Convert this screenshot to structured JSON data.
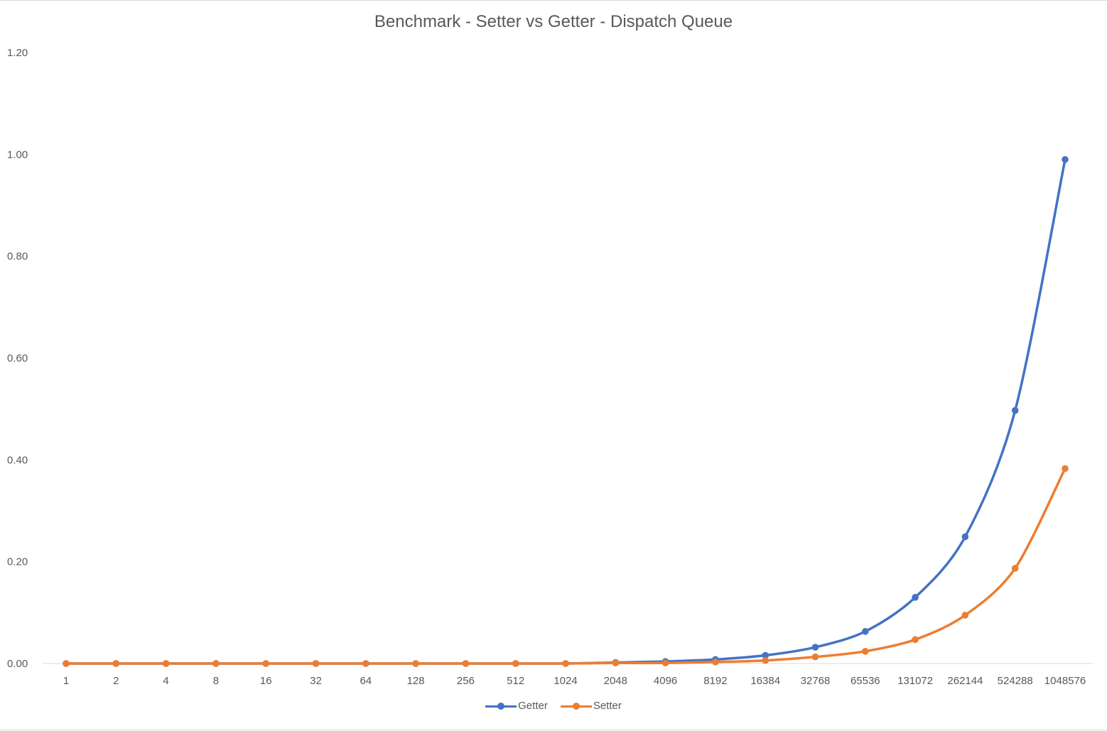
{
  "chart_data": {
    "type": "line",
    "title": "Benchmark - Setter vs Getter - Dispatch Queue",
    "xlabel": "",
    "ylabel": "",
    "categories": [
      "1",
      "2",
      "4",
      "8",
      "16",
      "32",
      "64",
      "128",
      "256",
      "512",
      "1024",
      "2048",
      "4096",
      "8192",
      "16384",
      "32768",
      "65536",
      "131072",
      "262144",
      "524288",
      "1048576"
    ],
    "y_ticks": [
      "0.00",
      "0.20",
      "0.40",
      "0.60",
      "0.80",
      "1.00",
      "1.20"
    ],
    "ylim": [
      0,
      1.2
    ],
    "grid": "horizontal-baseline-only",
    "legend_position": "bottom",
    "series": [
      {
        "name": "Getter",
        "color": "#4472c4",
        "values": [
          0.0,
          0.0,
          0.0,
          0.0,
          0.0,
          0.0,
          0.0,
          0.0,
          0.0,
          0.0,
          0.0,
          0.002,
          0.004,
          0.008,
          0.016,
          0.032,
          0.063,
          0.13,
          0.249,
          0.497,
          0.99
        ]
      },
      {
        "name": "Setter",
        "color": "#ed7d31",
        "values": [
          0.0,
          0.0,
          0.0,
          0.0,
          0.0,
          0.0,
          0.0,
          0.0,
          0.0,
          0.0,
          0.0,
          0.001,
          0.001,
          0.003,
          0.006,
          0.013,
          0.024,
          0.047,
          0.095,
          0.187,
          0.383
        ]
      }
    ]
  }
}
